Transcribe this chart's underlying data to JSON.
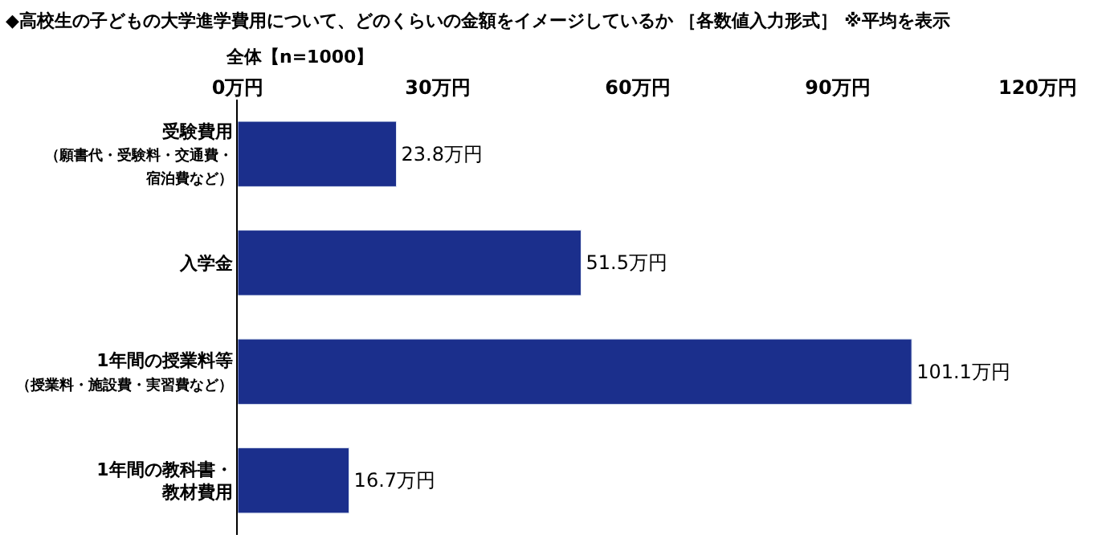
{
  "chart_data": {
    "type": "bar",
    "orientation": "horizontal",
    "title": "◆高校生の子どもの大学進学費用について、どのくらいの金額をイメージしているか ［各数値入力形式］ ※平均を表示",
    "subtitle": "全体【n=1000】",
    "categories": [
      "受験費用（願書代・受験料・交通費・宿泊費など）",
      "入学金",
      "1年間の授業料等（授業料・施設費・実習費など）",
      "1年間の教科書・教材費用"
    ],
    "values": [
      23.8,
      51.5,
      101.1,
      16.7
    ],
    "value_labels": [
      "23.8万円",
      "51.5万円",
      "101.1万円",
      "16.7万円"
    ],
    "color": "#1b2f8c",
    "xlim": [
      0,
      120
    ],
    "xticks": [
      {
        "value": 0,
        "label": "0万円"
      },
      {
        "value": 30,
        "label": "30万円"
      },
      {
        "value": 60,
        "label": "60万円"
      },
      {
        "value": 90,
        "label": "90万円"
      },
      {
        "value": 120,
        "label": "120万円"
      }
    ],
    "legend": false
  }
}
